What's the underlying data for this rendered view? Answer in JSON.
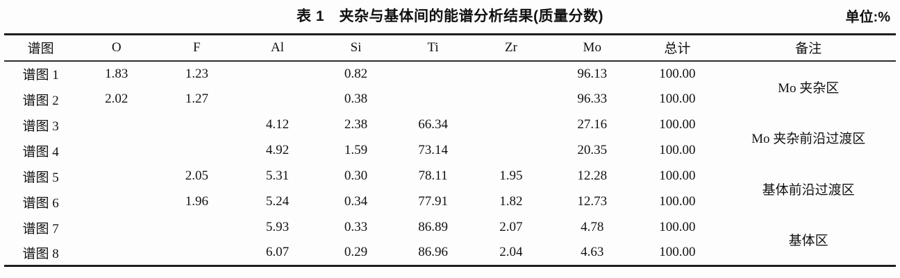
{
  "title": "表 1　夹杂与基体间的能谱分析结果(质量分数)",
  "unit_label": "单位:%",
  "table": {
    "columns": [
      "谱图",
      "O",
      "F",
      "Al",
      "Si",
      "Ti",
      "Zr",
      "Mo",
      "总计",
      "备注"
    ],
    "column_width_percents": [
      8.2,
      8.8,
      9.2,
      8.9,
      8.7,
      8.6,
      8.9,
      9.3,
      9.8,
      19.6
    ],
    "rows": [
      [
        "谱图 1",
        "1.83",
        "1.23",
        "",
        "0.82",
        "",
        "",
        "96.13",
        "100.00"
      ],
      [
        "谱图 2",
        "2.02",
        "1.27",
        "",
        "0.38",
        "",
        "",
        "96.33",
        "100.00"
      ],
      [
        "谱图 3",
        "",
        "",
        "4.12",
        "2.38",
        "66.34",
        "",
        "27.16",
        "100.00"
      ],
      [
        "谱图 4",
        "",
        "",
        "4.92",
        "1.59",
        "73.14",
        "",
        "20.35",
        "100.00"
      ],
      [
        "谱图 5",
        "",
        "2.05",
        "5.31",
        "0.30",
        "78.11",
        "1.95",
        "12.28",
        "100.00"
      ],
      [
        "谱图 6",
        "",
        "1.96",
        "5.24",
        "0.34",
        "77.91",
        "1.82",
        "12.73",
        "100.00"
      ],
      [
        "谱图 7",
        "",
        "",
        "5.93",
        "0.33",
        "86.89",
        "2.07",
        "4.78",
        "100.00"
      ],
      [
        "谱图 8",
        "",
        "",
        "6.07",
        "0.29",
        "86.96",
        "2.04",
        "4.63",
        "100.00"
      ]
    ],
    "remarks": [
      "Mo 夹杂区",
      "Mo 夹杂前沿过渡区",
      "基体前沿过渡区",
      "基体区"
    ],
    "remark_row_span": 2,
    "rule_color": "#1d1d1d",
    "text_color": "#111111"
  }
}
